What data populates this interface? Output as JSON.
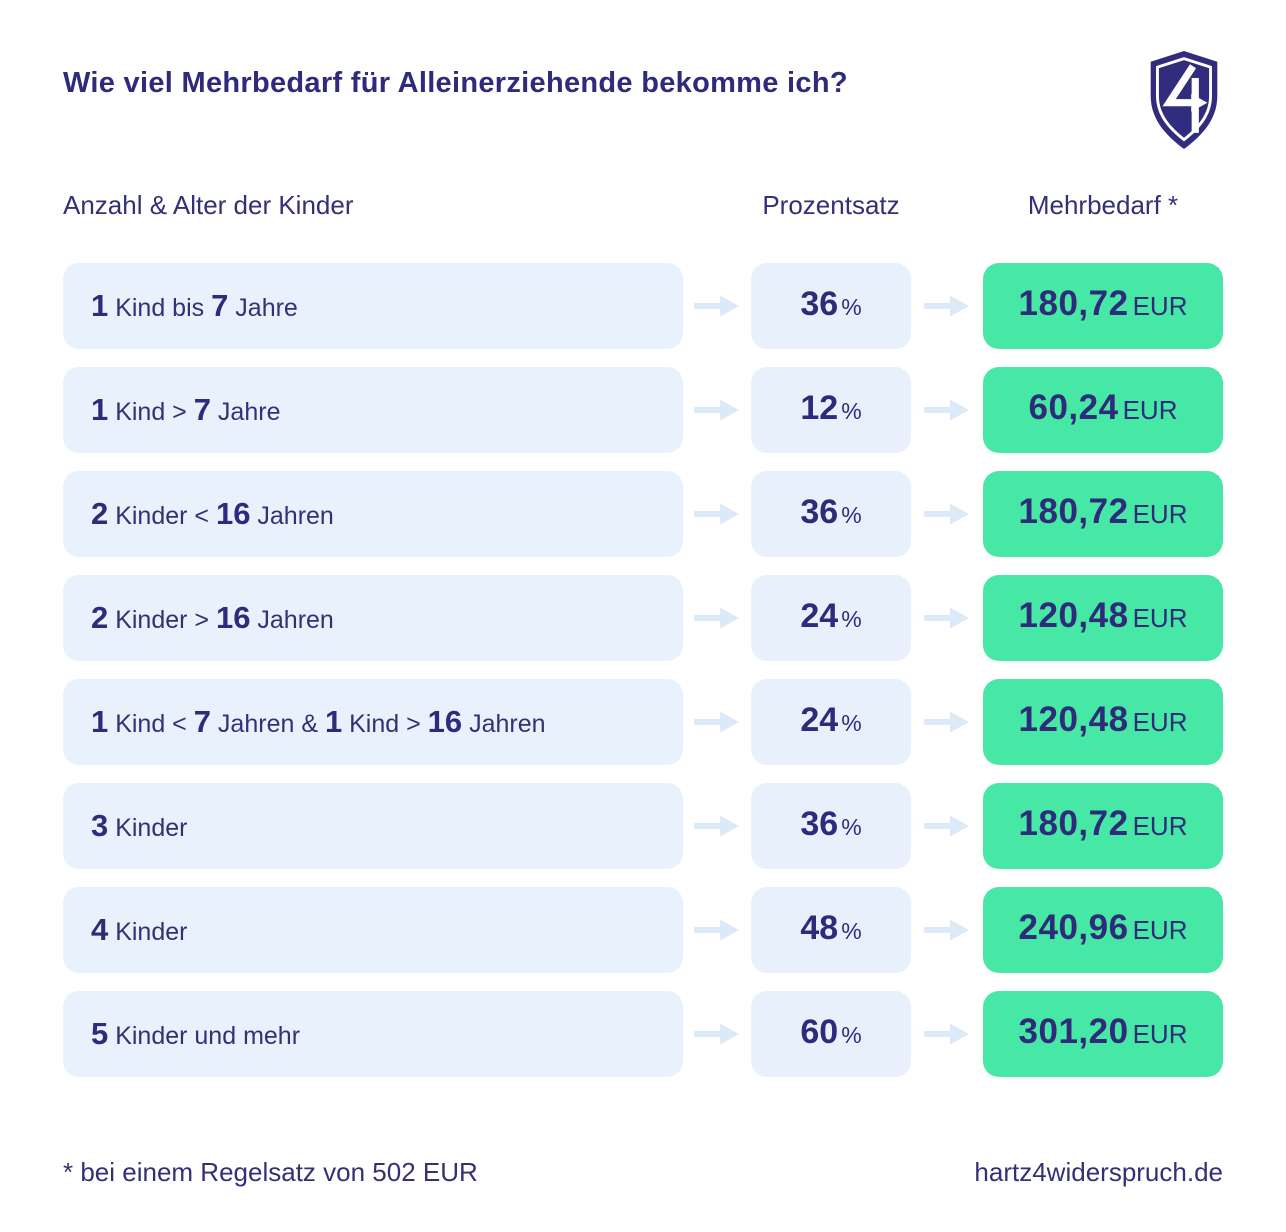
{
  "page": {
    "title": "Wie viel Mehrbedarf für Alleinerziehende bekomme ich?"
  },
  "logo": {
    "name": "hartz4-shield-4-arrow-logo",
    "color": "#312d7e"
  },
  "colors": {
    "navy_text": "#2e2b7b",
    "row_background": "#e8f2fc",
    "amount_background": "#47e8a5",
    "arrow": "#dce9f8"
  },
  "table": {
    "headers": {
      "children": "Anzahl & Alter der Kinder",
      "percent": "Prozentsatz",
      "extra_need": "Mehrbedarf *"
    },
    "percent_suffix": "%",
    "currency": "EUR",
    "rows": [
      {
        "label_parts": [
          {
            "text": "1",
            "bold": true
          },
          {
            "text": " Kind bis ",
            "bold": false
          },
          {
            "text": "7",
            "bold": true
          },
          {
            "text": " Jahre",
            "bold": false
          }
        ],
        "percent": "36",
        "amount": "180,72"
      },
      {
        "label_parts": [
          {
            "text": "1",
            "bold": true
          },
          {
            "text": " Kind > ",
            "bold": false
          },
          {
            "text": "7",
            "bold": true
          },
          {
            "text": " Jahre",
            "bold": false
          }
        ],
        "percent": "12",
        "amount": "60,24"
      },
      {
        "label_parts": [
          {
            "text": "2",
            "bold": true
          },
          {
            "text": " Kinder < ",
            "bold": false
          },
          {
            "text": "16",
            "bold": true
          },
          {
            "text": " Jahren",
            "bold": false
          }
        ],
        "percent": "36",
        "amount": "180,72"
      },
      {
        "label_parts": [
          {
            "text": "2",
            "bold": true
          },
          {
            "text": " Kinder > ",
            "bold": false
          },
          {
            "text": "16",
            "bold": true
          },
          {
            "text": " Jahren",
            "bold": false
          }
        ],
        "percent": "24",
        "amount": "120,48"
      },
      {
        "label_parts": [
          {
            "text": "1",
            "bold": true
          },
          {
            "text": " Kind < ",
            "bold": false
          },
          {
            "text": "7",
            "bold": true
          },
          {
            "text": " Jahren & ",
            "bold": false
          },
          {
            "text": "1",
            "bold": true
          },
          {
            "text": " Kind > ",
            "bold": false
          },
          {
            "text": "16",
            "bold": true
          },
          {
            "text": " Jahren",
            "bold": false
          }
        ],
        "percent": "24",
        "amount": "120,48"
      },
      {
        "label_parts": [
          {
            "text": "3",
            "bold": true
          },
          {
            "text": " Kinder",
            "bold": false
          }
        ],
        "percent": "36",
        "amount": "180,72"
      },
      {
        "label_parts": [
          {
            "text": "4",
            "bold": true
          },
          {
            "text": " Kinder",
            "bold": false
          }
        ],
        "percent": "48",
        "amount": "240,96"
      },
      {
        "label_parts": [
          {
            "text": "5",
            "bold": true
          },
          {
            "text": " Kinder und mehr",
            "bold": false
          }
        ],
        "percent": "60",
        "amount": "301,20"
      }
    ]
  },
  "footer": {
    "note": "* bei einem Regelsatz von 502 EUR",
    "website": "hartz4widerspruch.de"
  },
  "chart_data": {
    "type": "table",
    "title": "Wie viel Mehrbedarf für Alleinerziehende bekomme ich?",
    "columns": [
      "Anzahl & Alter der Kinder",
      "Prozentsatz",
      "Mehrbedarf *"
    ],
    "rows": [
      [
        "1 Kind bis 7 Jahre",
        "36 %",
        "180,72 EUR"
      ],
      [
        "1 Kind > 7 Jahre",
        "12 %",
        "60,24 EUR"
      ],
      [
        "2 Kinder < 16 Jahren",
        "36 %",
        "180,72 EUR"
      ],
      [
        "2 Kinder > 16 Jahren",
        "24 %",
        "120,48 EUR"
      ],
      [
        "1 Kind < 7 Jahren & 1 Kind > 16 Jahren",
        "24 %",
        "120,48 EUR"
      ],
      [
        "3 Kinder",
        "36 %",
        "180,72 EUR"
      ],
      [
        "4 Kinder",
        "48 %",
        "240,96 EUR"
      ],
      [
        "5 Kinder und mehr",
        "60 %",
        "301,20 EUR"
      ]
    ],
    "percent_values": [
      36,
      12,
      36,
      24,
      24,
      36,
      48,
      60
    ],
    "amount_values_eur": [
      180.72,
      60.24,
      180.72,
      120.48,
      120.48,
      180.72,
      240.96,
      301.2
    ],
    "note": "* bei einem Regelsatz von 502 EUR",
    "source": "hartz4widerspruch.de"
  }
}
